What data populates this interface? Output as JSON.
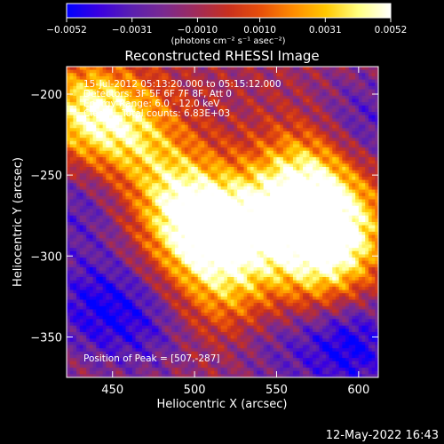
{
  "chart_data": {
    "type": "heatmap",
    "title": "Reconstructed RHESSI Image",
    "xlabel": "Heliocentric X (arcsec)",
    "ylabel": "Heliocentric Y (arcsec)",
    "xlim": [
      422,
      612
    ],
    "ylim": [
      -375,
      -183
    ],
    "x_ticks": [
      450,
      500,
      550,
      600
    ],
    "y_ticks": [
      -200,
      -250,
      -300,
      -350
    ],
    "colorbar": {
      "range": [
        -0.0052,
        0.0052
      ],
      "ticks": [
        -0.0052,
        -0.0031,
        -0.001,
        0.001,
        0.0031,
        0.0052
      ],
      "tick_labels": [
        "−0.0052",
        "−0.0031",
        "−0.0010",
        "0.0010",
        "0.0031",
        "0.0052"
      ],
      "unit_label": "(photons cm⁻² s⁻¹ asec⁻²)",
      "colormap": [
        "#0000ff",
        "#3a00e0",
        "#5a1fb0",
        "#7a2a90",
        "#a02b5a",
        "#c8301e",
        "#e8500a",
        "#ff8c00",
        "#ffc800",
        "#ffff80",
        "#ffffff"
      ]
    },
    "annotations": [
      "15-Jul-2012 05:13:20.000 to 05:15:12.000",
      "Detectors: 3F 5F 6F 7F 8F, Att 0",
      "Energy Range: 6.0 - 12.0 keV",
      "Clean    Total counts: 6.83E+03"
    ],
    "peak_label": "Position of Peak = [507,-287]",
    "peak": [
      507,
      -287
    ],
    "bright_regions": [
      {
        "x": 505,
        "y": -285,
        "level": 0.0052
      },
      {
        "x": 585,
        "y": -282,
        "level": 0.0048
      },
      {
        "x": 567,
        "y": -250,
        "level": 0.0035
      },
      {
        "x": 432,
        "y": -210,
        "level": 0.0033
      },
      {
        "x": 460,
        "y": -222,
        "level": 0.0026
      },
      {
        "x": 542,
        "y": -280,
        "level": 0.003
      },
      {
        "x": 488,
        "y": -258,
        "level": 0.0024
      },
      {
        "x": 520,
        "y": -322,
        "level": 0.002
      },
      {
        "x": 578,
        "y": -310,
        "level": 0.0022
      }
    ],
    "dim_regions": [
      {
        "x": 428,
        "y": -270,
        "level": -0.0032
      },
      {
        "x": 440,
        "y": -330,
        "level": -0.0042
      },
      {
        "x": 595,
        "y": -355,
        "level": -0.005
      },
      {
        "x": 604,
        "y": -218,
        "level": -0.0034
      },
      {
        "x": 548,
        "y": -355,
        "level": -0.0026
      },
      {
        "x": 470,
        "y": -345,
        "level": -0.003
      }
    ],
    "background_level": -0.001
  },
  "timestamp": "12-May-2022 16:43"
}
